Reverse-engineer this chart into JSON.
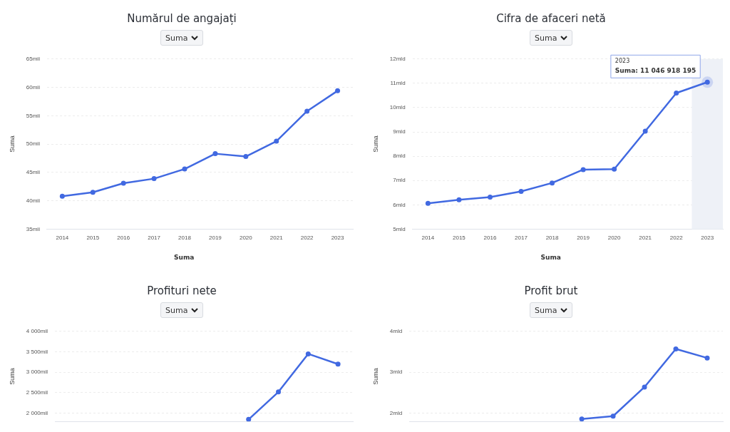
{
  "chart_data": [
    {
      "type": "line",
      "title": "Numărul de angajați",
      "subtitle": "Suma",
      "ylabel": "Suma",
      "categories": [
        "2014",
        "2015",
        "2016",
        "2017",
        "2018",
        "2019",
        "2020",
        "2021",
        "2022",
        "2023"
      ],
      "series": [
        {
          "name": "Suma",
          "color": "#4169e1",
          "values": [
            40.8,
            41.5,
            43.1,
            43.9,
            45.6,
            48.3,
            47.8,
            50.5,
            55.8,
            59.4
          ]
        }
      ],
      "ylim": [
        35,
        65
      ],
      "yticks": [
        {
          "value": 35,
          "label": "35mii"
        },
        {
          "value": 40,
          "label": "40mii"
        },
        {
          "value": 45,
          "label": "45mii"
        },
        {
          "value": 50,
          "label": "50mii"
        },
        {
          "value": 55,
          "label": "55mii"
        },
        {
          "value": 60,
          "label": "60mii"
        },
        {
          "value": 65,
          "label": "65mii"
        }
      ],
      "grid": "y",
      "legend": "bottom",
      "marker": "circle",
      "line_style": "solid"
    },
    {
      "type": "line",
      "title": "Cifra de afaceri netă",
      "subtitle": "Suma",
      "ylabel": "Suma",
      "categories": [
        "2014",
        "2015",
        "2016",
        "2017",
        "2018",
        "2019",
        "2020",
        "2021",
        "2022",
        "2023"
      ],
      "series": [
        {
          "name": "Suma",
          "color": "#4169e1",
          "values": [
            6.06,
            6.21,
            6.32,
            6.55,
            6.9,
            7.45,
            7.47,
            9.03,
            10.6,
            11.046918195
          ]
        }
      ],
      "ylim": [
        5,
        12
      ],
      "yticks": [
        {
          "value": 5,
          "label": "5mld"
        },
        {
          "value": 6,
          "label": "6mld"
        },
        {
          "value": 7,
          "label": "7mld"
        },
        {
          "value": 8,
          "label": "8mld"
        },
        {
          "value": 9,
          "label": "9mld"
        },
        {
          "value": 10,
          "label": "10mld"
        },
        {
          "value": 11,
          "label": "11mld"
        },
        {
          "value": 12,
          "label": "12mld"
        }
      ],
      "annotations": [
        {
          "text": "2023\nSuma: 11 046 918 195",
          "x": "2023",
          "y": 11.046918195
        }
      ],
      "bands": [
        {
          "axis": "x",
          "from": "2023",
          "to": "2023",
          "color": "#eef1f7"
        }
      ],
      "grid": "y",
      "legend": "bottom",
      "marker": "circle",
      "line_style": "solid"
    },
    {
      "type": "line",
      "title": "Profituri nete",
      "subtitle": "Suma",
      "ylabel": "Suma",
      "categories": [
        "2014",
        "2015",
        "2016",
        "2017",
        "2018",
        "2019",
        "2020",
        "2021",
        "2022",
        "2023"
      ],
      "series": [
        {
          "color": "#4169e1",
          "values": [
            null,
            null,
            null,
            null,
            null,
            null,
            1850,
            2520,
            3450,
            3200
          ]
        }
      ],
      "ylim": [
        1800,
        4000
      ],
      "yticks": [
        {
          "value": 2000,
          "label": "2 000mil"
        },
        {
          "value": 2500,
          "label": "2 500mil"
        },
        {
          "value": 3000,
          "label": "3 000mil"
        },
        {
          "value": 3500,
          "label": "3 500mil"
        },
        {
          "value": 4000,
          "label": "4 000mil"
        }
      ],
      "grid": "y",
      "tick_labels": "y",
      "marker": "circle",
      "line_style": "solid"
    },
    {
      "type": "line",
      "title": "Profit brut",
      "subtitle": "Suma",
      "ylabel": "Suma",
      "categories": [
        "2014",
        "2015",
        "2016",
        "2017",
        "2018",
        "2019",
        "2020",
        "2021",
        "2022",
        "2023"
      ],
      "series": [
        {
          "color": "#4169e1",
          "values": [
            null,
            null,
            null,
            null,
            null,
            1.86,
            1.93,
            2.64,
            3.57,
            3.35
          ]
        }
      ],
      "ylim": [
        1.8,
        4
      ],
      "yticks": [
        {
          "value": 2,
          "label": "2mld"
        },
        {
          "value": 3,
          "label": "3mld"
        },
        {
          "value": 4,
          "label": "4mld"
        }
      ],
      "grid": "y",
      "tick_labels": "y",
      "marker": "circle",
      "line_style": "solid"
    }
  ]
}
